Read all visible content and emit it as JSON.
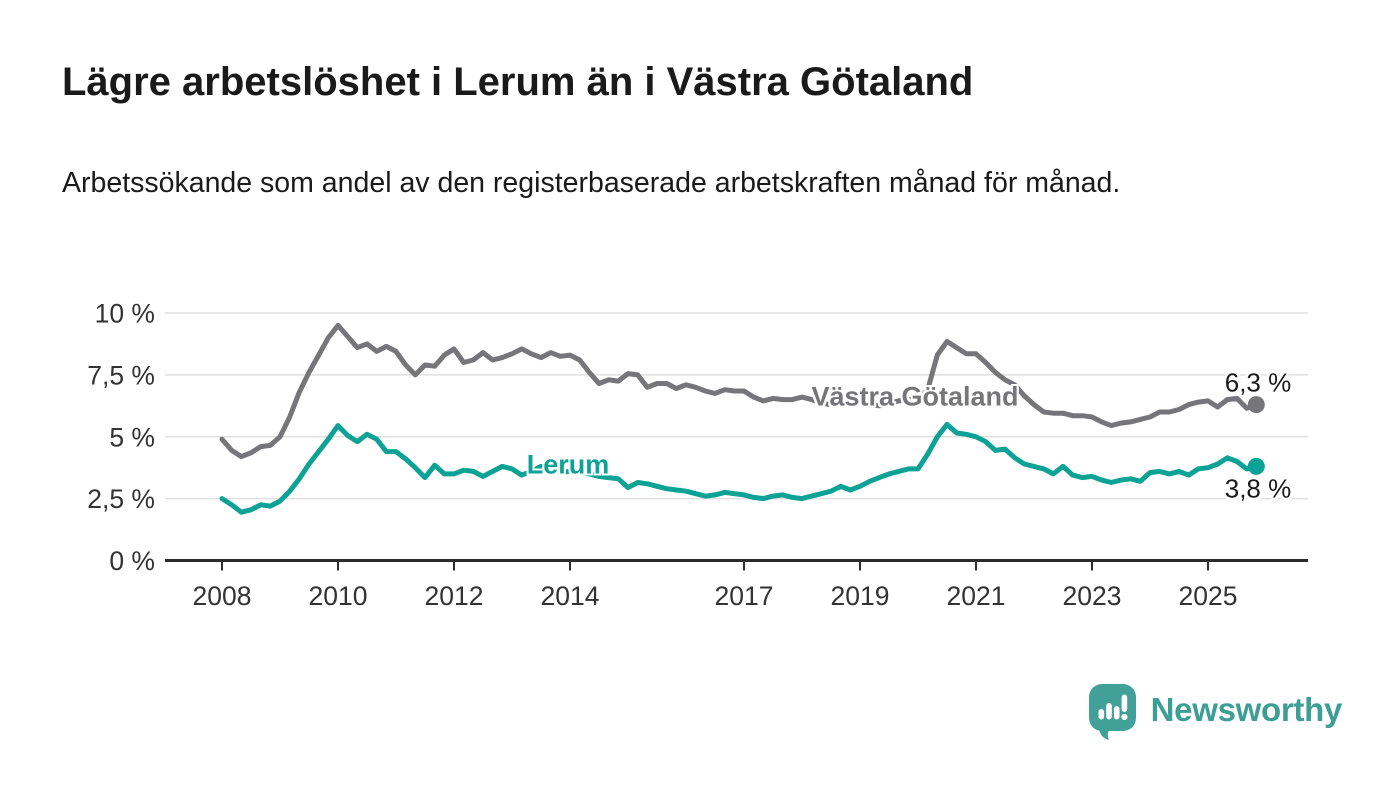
{
  "chart_data": {
    "type": "line",
    "title": "Lägre arbetslöshet i Lerum än i Västra Götaland",
    "subtitle": "Arbetssökande som andel av den registerbaserade arbetskraften månad för månad.",
    "x_unit": "time",
    "x_start_year": 2008,
    "points_per_year": 6,
    "x_end_approx": "2025-11",
    "ylim": [
      0,
      10
    ],
    "grid": "horizontal",
    "legend_position": "inline-labels",
    "y_ticks": [
      {
        "value": 0,
        "label": "0 %"
      },
      {
        "value": 2.5,
        "label": "2,5 %"
      },
      {
        "value": 5,
        "label": "5 %"
      },
      {
        "value": 7.5,
        "label": "7,5 %"
      },
      {
        "value": 10,
        "label": "10 %"
      }
    ],
    "x_ticks": [
      {
        "year": 2008,
        "label": "2008"
      },
      {
        "year": 2010,
        "label": "2010"
      },
      {
        "year": 2012,
        "label": "2012"
      },
      {
        "year": 2014,
        "label": "2014"
      },
      {
        "year": 2017,
        "label": "2017"
      },
      {
        "year": 2019,
        "label": "2019"
      },
      {
        "year": 2021,
        "label": "2021"
      },
      {
        "year": 2023,
        "label": "2023"
      },
      {
        "year": 2025,
        "label": "2025"
      }
    ],
    "series": [
      {
        "name": "Västra Götaland",
        "color": "#76767a",
        "end_label": "6,3 %",
        "end_value": 6.3,
        "values": [
          4.9,
          4.45,
          4.2,
          4.35,
          4.6,
          4.65,
          5.0,
          5.8,
          6.8,
          7.6,
          8.3,
          9.0,
          9.5,
          9.05,
          8.6,
          8.75,
          8.45,
          8.65,
          8.45,
          7.9,
          7.5,
          7.9,
          7.85,
          8.3,
          8.55,
          8.0,
          8.1,
          8.4,
          8.1,
          8.2,
          8.35,
          8.55,
          8.35,
          8.2,
          8.4,
          8.25,
          8.3,
          8.1,
          7.6,
          7.15,
          7.3,
          7.25,
          7.55,
          7.5,
          7.0,
          7.15,
          7.15,
          6.95,
          7.1,
          7.0,
          6.85,
          6.75,
          6.9,
          6.85,
          6.85,
          6.6,
          6.45,
          6.55,
          6.5,
          6.5,
          6.6,
          6.5,
          6.35,
          6.3,
          6.45,
          6.4,
          6.35,
          6.3,
          6.25,
          6.35,
          6.45,
          6.5,
          6.5,
          6.9,
          8.3,
          8.85,
          8.6,
          8.35,
          8.35,
          8.0,
          7.6,
          7.3,
          7.1,
          6.65,
          6.3,
          6.0,
          5.95,
          5.95,
          5.85,
          5.85,
          5.8,
          5.6,
          5.45,
          5.55,
          5.6,
          5.7,
          5.8,
          6.0,
          6.0,
          6.1,
          6.3,
          6.4,
          6.45,
          6.2,
          6.5,
          6.55,
          6.15,
          6.3
        ]
      },
      {
        "name": "Lerum",
        "color": "#0ca296",
        "end_label": "3,8 %",
        "end_value": 3.8,
        "values": [
          2.5,
          2.25,
          1.95,
          2.05,
          2.25,
          2.2,
          2.4,
          2.8,
          3.3,
          3.9,
          4.4,
          4.9,
          5.45,
          5.05,
          4.8,
          5.1,
          4.9,
          4.4,
          4.4,
          4.1,
          3.75,
          3.35,
          3.85,
          3.5,
          3.5,
          3.65,
          3.6,
          3.4,
          3.6,
          3.8,
          3.7,
          3.45,
          3.6,
          3.8,
          3.7,
          3.55,
          3.6,
          3.55,
          3.5,
          3.4,
          3.35,
          3.3,
          2.95,
          3.15,
          3.1,
          3.0,
          2.9,
          2.85,
          2.8,
          2.7,
          2.6,
          2.65,
          2.75,
          2.7,
          2.65,
          2.55,
          2.5,
          2.6,
          2.65,
          2.55,
          2.5,
          2.6,
          2.7,
          2.8,
          3.0,
          2.85,
          3.0,
          3.2,
          3.35,
          3.5,
          3.6,
          3.7,
          3.7,
          4.3,
          5.0,
          5.5,
          5.15,
          5.1,
          5.0,
          4.8,
          4.45,
          4.5,
          4.15,
          3.9,
          3.8,
          3.7,
          3.5,
          3.8,
          3.45,
          3.35,
          3.4,
          3.25,
          3.15,
          3.25,
          3.3,
          3.2,
          3.55,
          3.6,
          3.5,
          3.6,
          3.45,
          3.7,
          3.75,
          3.9,
          4.15,
          4.0,
          3.7,
          3.8
        ]
      }
    ],
    "colors": {
      "axis": "#2b2b2b",
      "gridline": "#e0e0e0",
      "tick_label": "#333333",
      "value_label": "#1a1a1a"
    }
  },
  "footer": {
    "brand": "Newsworthy",
    "brand_color": "#3d9e95",
    "logo_icon": "speech-bubble-with-bar-chart-and-exclamation"
  }
}
